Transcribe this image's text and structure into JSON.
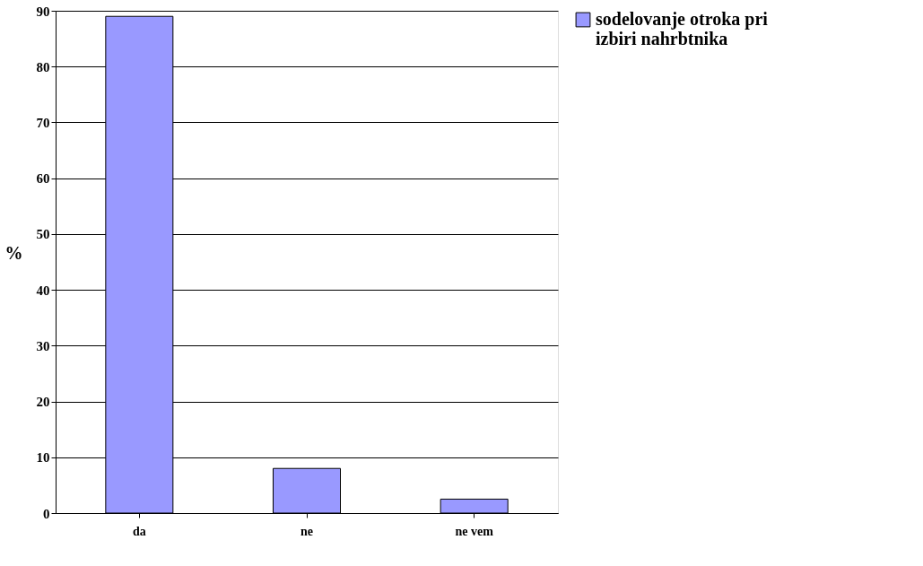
{
  "chart_data": {
    "type": "bar",
    "ylabel": "%",
    "categories": [
      "da",
      "ne",
      "ne vem"
    ],
    "series": [
      {
        "name": "sodelovanje otroka pri izbiri nahrbtnika",
        "color": "#9999ff",
        "values": [
          89,
          8,
          2.5
        ]
      }
    ],
    "ylim": [
      0,
      90
    ],
    "yticks": [
      0,
      10,
      20,
      30,
      40,
      50,
      60,
      70,
      80,
      90
    ],
    "grid": "y",
    "legend": "right"
  }
}
